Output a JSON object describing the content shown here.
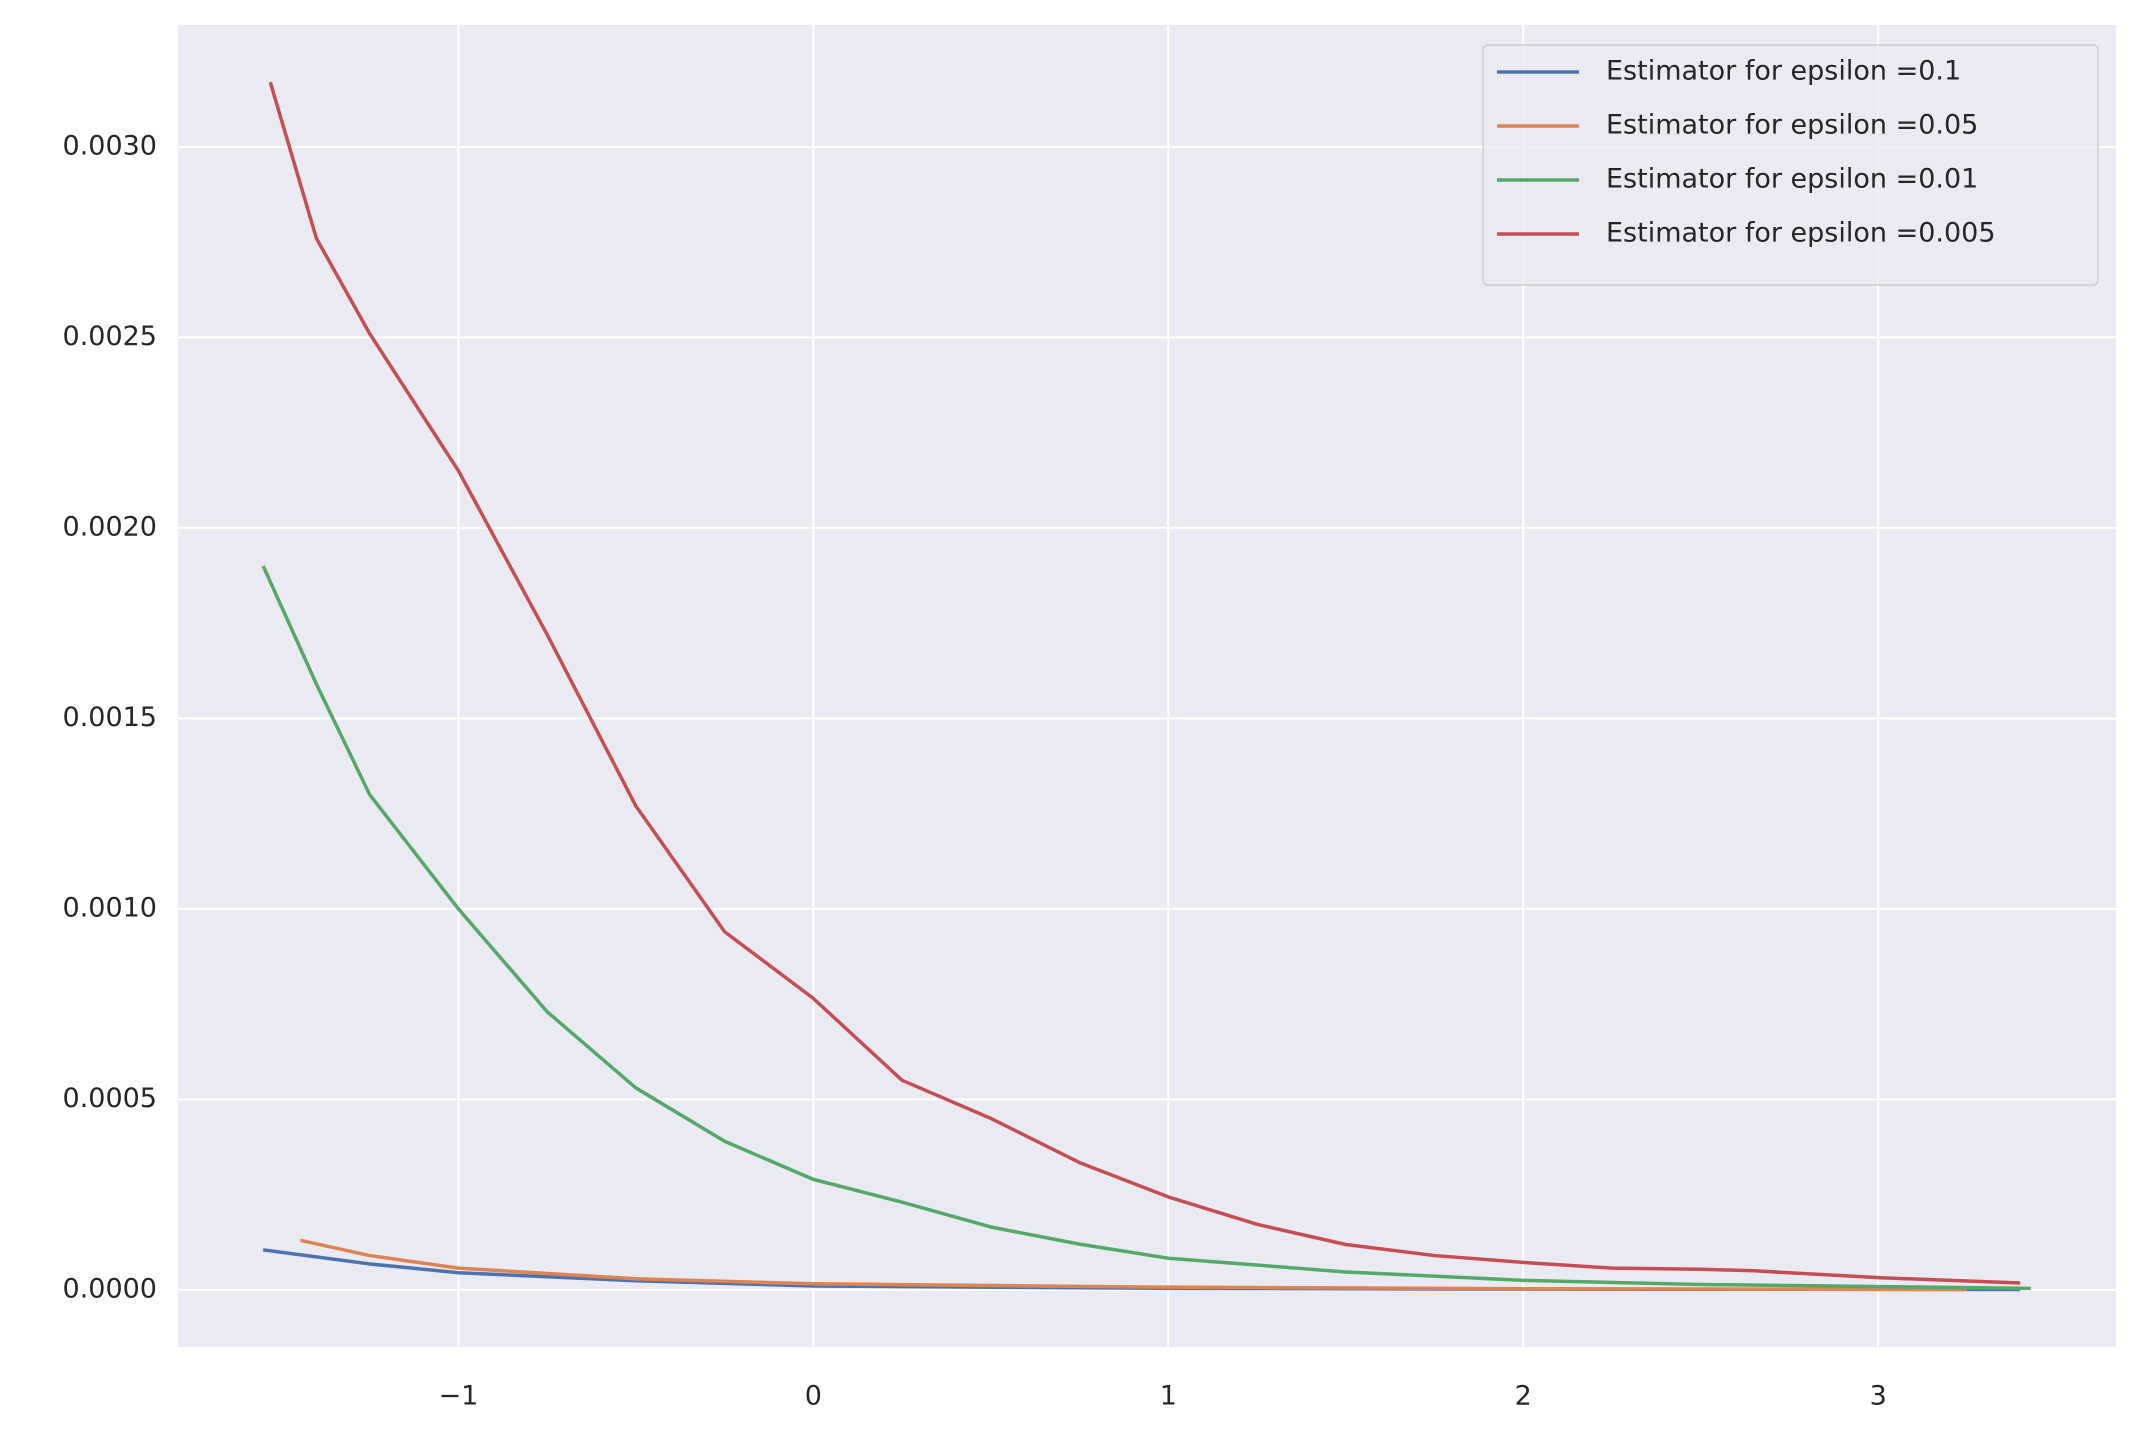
{
  "chart_data": {
    "type": "line",
    "xlim": [
      -1.79,
      3.67
    ],
    "ylim": [
      -0.00015,
      0.00332
    ],
    "xticks": [
      {
        "value": -1,
        "label": "−1"
      },
      0,
      1,
      2,
      3
    ],
    "yticks": [
      {
        "value": 0,
        "label": "0.0000"
      },
      {
        "value": 0.0005,
        "label": "0.0005"
      },
      {
        "value": 0.001,
        "label": "0.0010"
      },
      {
        "value": 0.0015,
        "label": "0.0015"
      },
      {
        "value": 0.002,
        "label": "0.0020"
      },
      {
        "value": 0.0025,
        "label": "0.0025"
      },
      {
        "value": 0.003,
        "label": "0.0030"
      }
    ],
    "grid": true,
    "legend": "upper right",
    "series": [
      {
        "name": "Estimator for epsilon =0.1",
        "color": "#4c72b0",
        "x": [
          -1.55,
          -1.25,
          -1,
          -0.5,
          0,
          1,
          2,
          3.4
        ],
        "values": [
          0.000105,
          6.8e-05,
          4.5e-05,
          2.4e-05,
          1e-05,
          4e-06,
          2e-06,
          1e-06
        ]
      },
      {
        "name": "Estimator for epsilon =0.05",
        "color": "#dd8452",
        "x": [
          -1.445,
          -1.25,
          -1,
          -0.5,
          0,
          1,
          2,
          3.25
        ],
        "values": [
          0.00013,
          9e-05,
          5.7e-05,
          2.9e-05,
          1.6e-05,
          7e-06,
          3e-06,
          1e-06
        ]
      },
      {
        "name": "Estimator for epsilon =0.01",
        "color": "#55a868",
        "x": [
          -1.55,
          -1.4,
          -1.25,
          -1,
          -0.75,
          -0.5,
          -0.25,
          0,
          0.25,
          0.5,
          0.75,
          1,
          1.5,
          2,
          2.5,
          3.43
        ],
        "values": [
          0.0019,
          0.00159,
          0.0013,
          0.001,
          0.00073,
          0.00053,
          0.00039,
          0.00029,
          0.00023,
          0.000165,
          0.00012,
          8.3e-05,
          4.7e-05,
          2.5e-05,
          1.4e-05,
          4e-06
        ]
      },
      {
        "name": "Estimator for epsilon =0.005",
        "color": "#c44e52",
        "x": [
          -1.53,
          -1.4,
          -1.25,
          -1,
          -0.75,
          -0.5,
          -0.25,
          0,
          0.25,
          0.5,
          0.75,
          1,
          1.25,
          1.5,
          1.75,
          2,
          2.25,
          2.5,
          2.65,
          3,
          3.4
        ],
        "values": [
          0.00317,
          0.00276,
          0.00251,
          0.00215,
          0.00172,
          0.00127,
          0.00094,
          0.000765,
          0.00055,
          0.00045,
          0.000334,
          0.000244,
          0.000172,
          0.000119,
          9e-05,
          7.2e-05,
          5.7e-05,
          5.4e-05,
          5e-05,
          3.2e-05,
          1.8e-05
        ]
      }
    ]
  }
}
